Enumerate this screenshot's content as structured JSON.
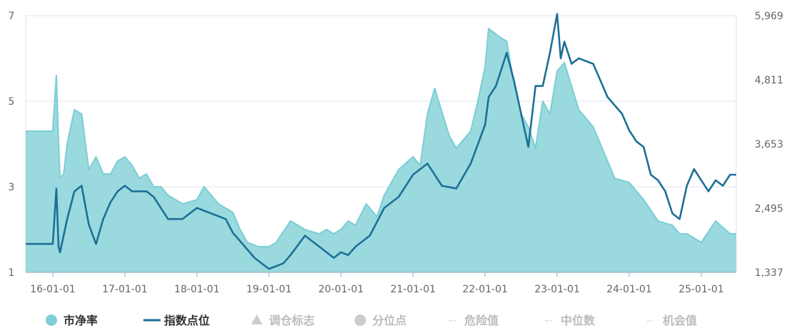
{
  "chart_data": {
    "type": "line",
    "x_tick_labels": [
      "16-01-01",
      "17-01-01",
      "18-01-01",
      "19-01-01",
      "20-01-01",
      "21-01-01",
      "22-01-01",
      "23-01-01",
      "24-01-01",
      "25-01-01"
    ],
    "y_left": {
      "ticks": [
        "7",
        "5",
        "3",
        "1"
      ],
      "range": [
        1,
        7
      ]
    },
    "y_right": {
      "ticks": [
        "5,969",
        "4,811",
        "3,653",
        "2,495",
        "1,337"
      ],
      "range": [
        1337,
        5969
      ]
    },
    "series": [
      {
        "name": "市净率",
        "axis": "left",
        "style": "area",
        "color": "#7ecfd6",
        "x": [
          0,
          0.05,
          0.08,
          0.1,
          0.15,
          0.2,
          0.3,
          0.4,
          0.5,
          0.6,
          0.7,
          0.8,
          0.9,
          1.0,
          1.1,
          1.2,
          1.3,
          1.4,
          1.5,
          1.6,
          1.8,
          2.0,
          2.1,
          2.3,
          2.5,
          2.6,
          2.7,
          2.85,
          3.0,
          3.1,
          3.3,
          3.5,
          3.7,
          3.8,
          3.9,
          4.0,
          4.1,
          4.2,
          4.35,
          4.5,
          4.6,
          4.8,
          5.0,
          5.1,
          5.2,
          5.3,
          5.5,
          5.6,
          5.8,
          5.9,
          6.0,
          6.05,
          6.2,
          6.3,
          6.4,
          6.5,
          6.6,
          6.7,
          6.8,
          6.9,
          7.0,
          7.1,
          7.3,
          7.5,
          7.6,
          7.8,
          8.0,
          8.2,
          8.4,
          8.6,
          8.7,
          8.8,
          9.0,
          9.2,
          9.4
        ],
        "values": [
          4.3,
          5.6,
          4.0,
          3.2,
          3.3,
          4.0,
          4.8,
          4.7,
          3.4,
          3.7,
          3.3,
          3.3,
          3.6,
          3.7,
          3.5,
          3.2,
          3.3,
          3.0,
          3.0,
          2.8,
          2.6,
          2.7,
          3.0,
          2.6,
          2.4,
          2.0,
          1.7,
          1.6,
          1.6,
          1.7,
          2.2,
          2.0,
          1.9,
          2.0,
          1.9,
          2.0,
          2.2,
          2.1,
          2.6,
          2.3,
          2.8,
          3.4,
          3.7,
          3.5,
          4.7,
          5.3,
          4.2,
          3.9,
          4.3,
          5.0,
          5.8,
          6.7,
          6.5,
          6.4,
          5.4,
          4.7,
          4.4,
          3.9,
          5.0,
          4.7,
          5.7,
          5.9,
          4.8,
          4.4,
          4.0,
          3.2,
          3.1,
          2.7,
          2.2,
          2.1,
          1.9,
          1.9,
          1.7,
          2.2,
          1.9
        ]
      },
      {
        "name": "指数点位",
        "axis": "right",
        "style": "line",
        "color": "#1d6f97",
        "x": [
          0,
          0.05,
          0.08,
          0.1,
          0.2,
          0.3,
          0.4,
          0.5,
          0.6,
          0.7,
          0.8,
          0.9,
          1.0,
          1.1,
          1.3,
          1.4,
          1.6,
          1.8,
          2.0,
          2.2,
          2.4,
          2.5,
          2.6,
          2.8,
          3.0,
          3.2,
          3.3,
          3.5,
          3.7,
          3.9,
          4.0,
          4.1,
          4.2,
          4.4,
          4.6,
          4.8,
          5.0,
          5.2,
          5.4,
          5.6,
          5.8,
          6.0,
          6.05,
          6.15,
          6.3,
          6.4,
          6.5,
          6.6,
          6.7,
          6.8,
          6.9,
          7.0,
          7.05,
          7.1,
          7.2,
          7.3,
          7.5,
          7.7,
          7.9,
          8.0,
          8.1,
          8.2,
          8.3,
          8.4,
          8.5,
          8.6,
          8.7,
          8.8,
          8.9,
          9.0,
          9.1,
          9.2,
          9.3,
          9.4
        ],
        "values": [
          1850,
          2850,
          1800,
          1700,
          2300,
          2800,
          2900,
          2200,
          1850,
          2300,
          2600,
          2800,
          2900,
          2800,
          2800,
          2700,
          2300,
          2300,
          2500,
          2400,
          2300,
          2050,
          1900,
          1600,
          1400,
          1500,
          1650,
          2000,
          1800,
          1600,
          1700,
          1650,
          1800,
          2000,
          2500,
          2700,
          3100,
          3300,
          2900,
          2850,
          3300,
          4000,
          4500,
          4700,
          5300,
          4800,
          4200,
          3600,
          4700,
          4700,
          5300,
          6000,
          5200,
          5500,
          5100,
          5200,
          5100,
          4500,
          4200,
          3900,
          3700,
          3600,
          3100,
          3000,
          2800,
          2400,
          2300,
          2900,
          3200,
          3000,
          2800,
          3000,
          2900,
          3100
        ]
      }
    ],
    "legend": {
      "position": "bottom",
      "items": [
        {
          "name": "市净率",
          "symbol": "circle",
          "color": "#7ecfd6",
          "active": true
        },
        {
          "name": "指数点位",
          "symbol": "line",
          "color": "#1d6f97",
          "active": true
        },
        {
          "name": "调仓标志",
          "symbol": "triangle",
          "color": "#cccccc",
          "active": false
        },
        {
          "name": "分位点",
          "symbol": "circle",
          "color": "#cccccc",
          "active": false
        },
        {
          "name": "危险值",
          "symbol": "dash",
          "color": "#cccccc",
          "active": false
        },
        {
          "name": "中位数",
          "symbol": "dash",
          "color": "#cccccc",
          "active": false
        },
        {
          "name": "机会值",
          "symbol": "dash",
          "color": "#cccccc",
          "active": false
        }
      ]
    },
    "grid": true
  }
}
